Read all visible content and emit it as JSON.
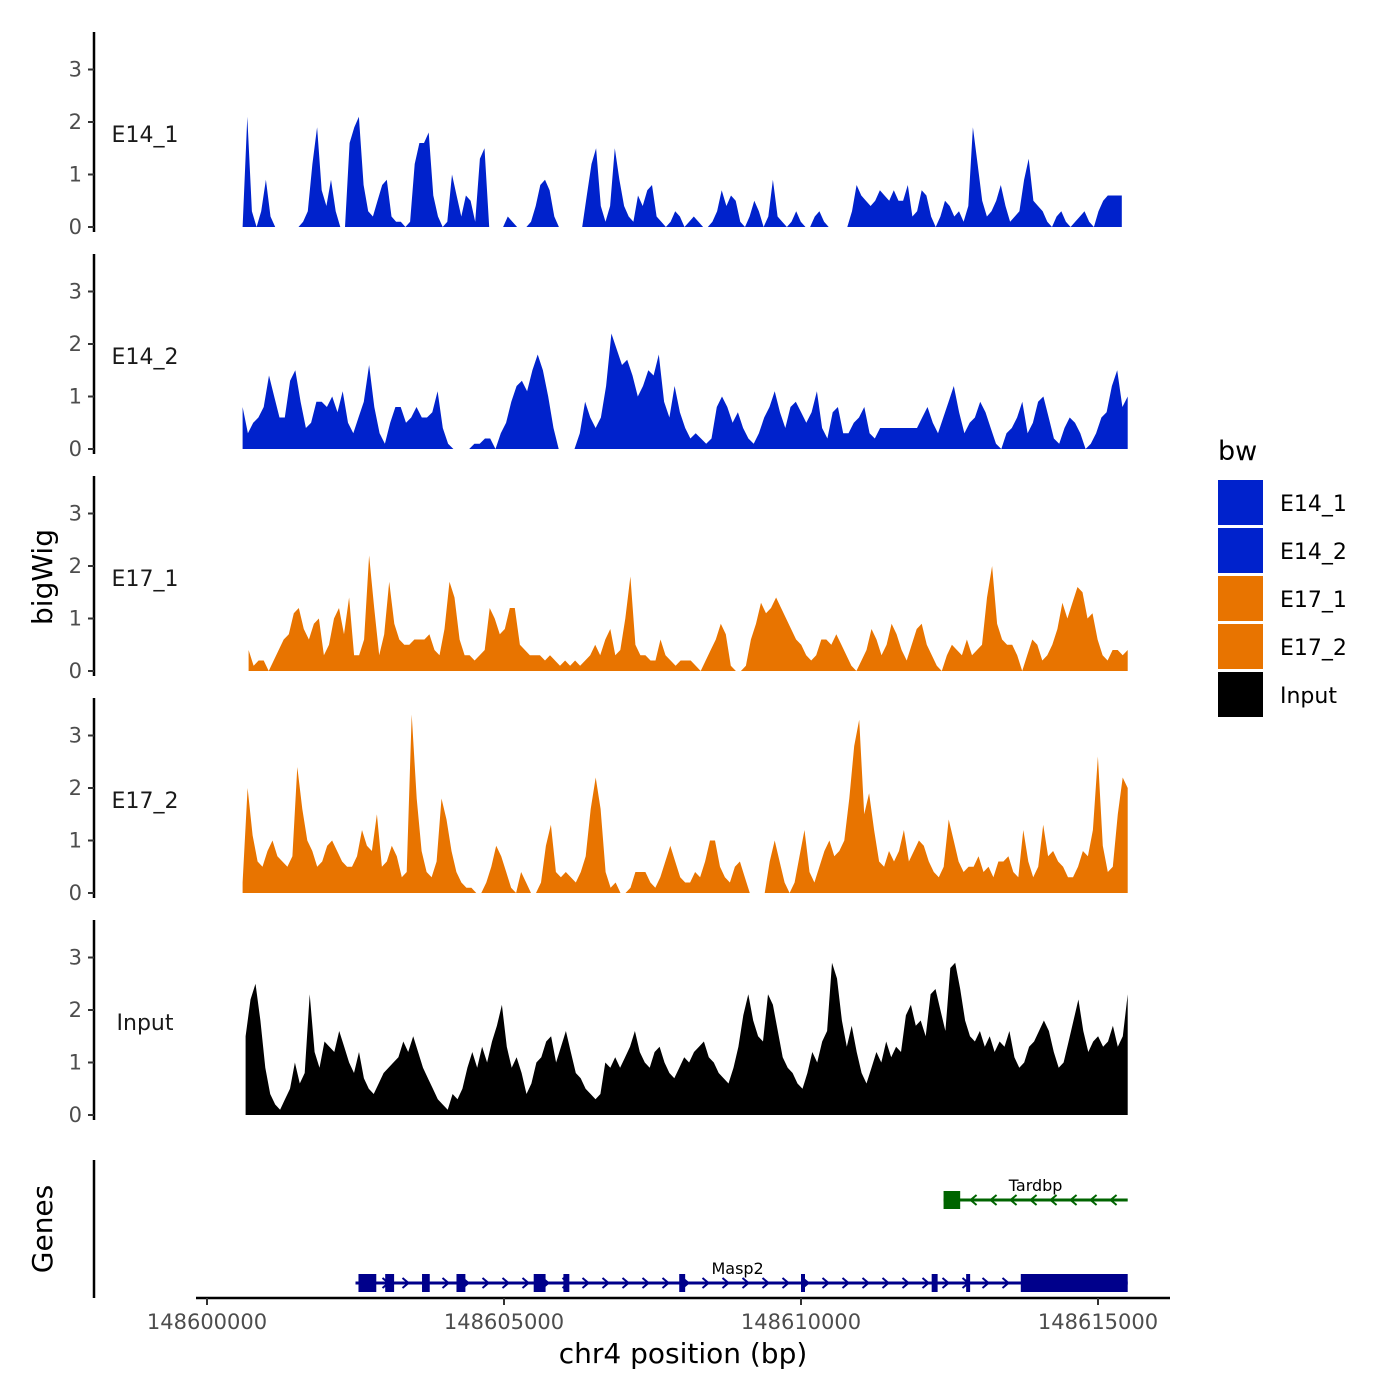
{
  "chart_data": {
    "type": "area",
    "title": "",
    "xlabel": "chr4 position (bp)",
    "ylabel": "bigWig",
    "gene_panel_label": "Genes",
    "xlim": [
      148599500,
      148615500
    ],
    "ylim": [
      0,
      3.5
    ],
    "x_ticks": [
      148600000,
      148605000,
      148610000,
      148615000
    ],
    "x_tick_labels": [
      "148600000",
      "148605000",
      "148610000",
      "148615000"
    ],
    "y_ticks": [
      0,
      1,
      2,
      3
    ],
    "y_tick_labels": [
      "0",
      "1",
      "2",
      "3"
    ],
    "legend": {
      "title": "bw",
      "entries": [
        {
          "label": "E14_1",
          "color": "#0022cc"
        },
        {
          "label": "E14_2",
          "color": "#0022cc"
        },
        {
          "label": "E17_1",
          "color": "#e87400"
        },
        {
          "label": "E17_2",
          "color": "#e87400"
        },
        {
          "label": "Input",
          "color": "#000000"
        }
      ]
    },
    "series": [
      {
        "name": "E14_1",
        "color": "#0022cc",
        "x_start": 148600600,
        "x_end": 148615400,
        "values": [
          0,
          2.1,
          0.3,
          0,
          0.3,
          0.9,
          0.2,
          0,
          0,
          0,
          0,
          0,
          0,
          0.1,
          0.3,
          1.2,
          1.9,
          0.7,
          0.4,
          0.9,
          0.3,
          0,
          0,
          1.6,
          1.9,
          2.1,
          0.8,
          0.3,
          0.2,
          0.5,
          0.8,
          0.9,
          0.2,
          0.1,
          0.1,
          0,
          0.1,
          1.2,
          1.6,
          1.6,
          1.8,
          0.6,
          0.2,
          0,
          0.1,
          1.0,
          0.6,
          0.2,
          0.6,
          0.5,
          0.1,
          1.3,
          1.5,
          0,
          0,
          0,
          0,
          0.2,
          0.1,
          0,
          0,
          0,
          0.1,
          0.4,
          0.8,
          0.9,
          0.7,
          0.2,
          0,
          0,
          0,
          0,
          0,
          0,
          0.6,
          1.2,
          1.5,
          0.4,
          0.1,
          0.4,
          1.5,
          0.9,
          0.4,
          0.2,
          0.1,
          0.6,
          0.4,
          0.7,
          0.8,
          0.2,
          0.1,
          0,
          0.1,
          0.3,
          0.2,
          0,
          0.1,
          0.2,
          0.1,
          0,
          0,
          0.1,
          0.3,
          0.7,
          0.4,
          0.6,
          0.5,
          0.1,
          0,
          0.2,
          0.5,
          0.3,
          0,
          0.2,
          0.9,
          0.2,
          0.1,
          0,
          0.1,
          0.3,
          0.1,
          0,
          0,
          0.2,
          0.3,
          0.1,
          0,
          0,
          0,
          0,
          0,
          0.3,
          0.8,
          0.6,
          0.5,
          0.4,
          0.5,
          0.7,
          0.6,
          0.5,
          0.7,
          0.5,
          0.5,
          0.8,
          0.2,
          0.3,
          0.7,
          0.6,
          0.2,
          0,
          0.2,
          0.5,
          0.4,
          0.2,
          0.3,
          0.1,
          0.4,
          1.9,
          1.2,
          0.5,
          0.2,
          0.3,
          0.5,
          0.8,
          0.4,
          0.1,
          0.2,
          0.3,
          0.9,
          1.3,
          0.5,
          0.4,
          0.3,
          0.1,
          0,
          0.2,
          0.3,
          0.1,
          0,
          0.1,
          0.2,
          0.3,
          0.1,
          0,
          0.3,
          0.5,
          0.6,
          0.6,
          0.6,
          0.6
        ]
      },
      {
        "name": "E14_2",
        "color": "#0022cc",
        "x_start": 148600600,
        "x_end": 148615500,
        "values": [
          0.8,
          0.3,
          0.5,
          0.6,
          0.8,
          1.4,
          1.0,
          0.6,
          0.6,
          1.3,
          1.5,
          0.9,
          0.4,
          0.5,
          0.9,
          0.9,
          0.8,
          1.0,
          0.7,
          1.1,
          0.5,
          0.3,
          0.6,
          0.9,
          1.6,
          0.8,
          0.3,
          0.1,
          0.5,
          0.8,
          0.8,
          0.5,
          0.6,
          0.8,
          0.6,
          0.6,
          0.7,
          1.1,
          0.4,
          0.1,
          0,
          0,
          0,
          0,
          0.1,
          0.1,
          0.2,
          0.2,
          0,
          0.3,
          0.5,
          0.9,
          1.2,
          1.3,
          1.1,
          1.5,
          1.8,
          1.5,
          1.0,
          0.4,
          0,
          0,
          0,
          0,
          0.3,
          0.9,
          0.6,
          0.4,
          0.6,
          1.2,
          2.2,
          1.9,
          1.6,
          1.7,
          1.4,
          1.0,
          1.2,
          1.5,
          1.4,
          1.8,
          0.9,
          0.6,
          1.2,
          0.7,
          0.4,
          0.2,
          0.3,
          0.2,
          0.1,
          0.2,
          0.8,
          1.0,
          0.8,
          0.5,
          0.7,
          0.4,
          0.2,
          0.1,
          0.3,
          0.6,
          0.8,
          1.1,
          0.7,
          0.4,
          0.8,
          0.9,
          0.7,
          0.5,
          0.7,
          1.1,
          0.4,
          0.2,
          0.7,
          0.8,
          0.3,
          0.3,
          0.5,
          0.6,
          0.8,
          0.3,
          0.2,
          0.4,
          0.4,
          0.4,
          0.4,
          0.4,
          0.4,
          0.4,
          0.4,
          0.6,
          0.8,
          0.5,
          0.3,
          0.6,
          0.9,
          1.2,
          0.7,
          0.3,
          0.5,
          0.6,
          0.9,
          0.7,
          0.4,
          0.1,
          0,
          0.3,
          0.4,
          0.6,
          0.9,
          0.3,
          0.5,
          0.9,
          1.0,
          0.6,
          0.2,
          0.1,
          0.4,
          0.6,
          0.5,
          0.3,
          0,
          0.1,
          0.3,
          0.6,
          0.7,
          1.2,
          1.5,
          0.8,
          1.0
        ]
      },
      {
        "name": "E17_1",
        "color": "#e87400",
        "x_start": 148600700,
        "x_end": 148615500,
        "values": [
          0.4,
          0.1,
          0.2,
          0.2,
          0,
          0.2,
          0.4,
          0.6,
          0.7,
          1.1,
          1.2,
          0.8,
          0.6,
          0.9,
          1.0,
          0.3,
          0.5,
          1.0,
          1.2,
          0.7,
          1.4,
          0.3,
          0.3,
          0.6,
          2.2,
          1.2,
          0.3,
          0.7,
          1.7,
          0.9,
          0.6,
          0.5,
          0.5,
          0.6,
          0.6,
          0.6,
          0.7,
          0.4,
          0.3,
          0.8,
          1.7,
          1.4,
          0.6,
          0.3,
          0.3,
          0.2,
          0.3,
          0.4,
          1.2,
          1.0,
          0.7,
          0.8,
          1.2,
          1.2,
          0.5,
          0.4,
          0.3,
          0.3,
          0.3,
          0.2,
          0.3,
          0.2,
          0.1,
          0.2,
          0.1,
          0.2,
          0.1,
          0.2,
          0.3,
          0.5,
          0.3,
          0.6,
          0.8,
          0.3,
          0.4,
          1.0,
          1.8,
          0.5,
          0.3,
          0.3,
          0.2,
          0.2,
          0.6,
          0.3,
          0.2,
          0.1,
          0.2,
          0.2,
          0.2,
          0.1,
          0,
          0.2,
          0.4,
          0.6,
          0.9,
          0.7,
          0.1,
          0,
          0,
          0.1,
          0.6,
          0.9,
          1.3,
          1.1,
          1.2,
          1.4,
          1.2,
          1.0,
          0.8,
          0.6,
          0.5,
          0.3,
          0.2,
          0.3,
          0.6,
          0.6,
          0.5,
          0.7,
          0.5,
          0.3,
          0.1,
          0,
          0.2,
          0.4,
          0.8,
          0.6,
          0.3,
          0.5,
          0.9,
          0.7,
          0.4,
          0.2,
          0.5,
          0.8,
          0.9,
          0.5,
          0.3,
          0.1,
          0,
          0.3,
          0.5,
          0.4,
          0.3,
          0.6,
          0.3,
          0.4,
          0.5,
          1.4,
          2.0,
          0.9,
          0.6,
          0.5,
          0.5,
          0.3,
          0,
          0.3,
          0.6,
          0.5,
          0.2,
          0.3,
          0.5,
          0.8,
          1.3,
          1.0,
          1.3,
          1.6,
          1.5,
          1.0,
          1.1,
          0.6,
          0.3,
          0.2,
          0.4,
          0.4,
          0.3,
          0.4
        ]
      },
      {
        "name": "E17_2",
        "color": "#e87400",
        "x_start": 148600600,
        "x_end": 148615500,
        "values": [
          0.2,
          2.0,
          1.1,
          0.6,
          0.5,
          0.8,
          1.0,
          0.7,
          0.6,
          0.5,
          0.7,
          2.4,
          1.6,
          1.0,
          0.8,
          0.5,
          0.6,
          0.9,
          1.0,
          0.8,
          0.6,
          0.5,
          0.5,
          0.7,
          1.2,
          0.9,
          0.8,
          1.5,
          0.5,
          0.6,
          0.9,
          0.7,
          0.3,
          0.4,
          3.4,
          1.8,
          0.8,
          0.4,
          0.3,
          0.6,
          1.8,
          1.4,
          0.8,
          0.4,
          0.2,
          0.1,
          0.1,
          0,
          0,
          0.2,
          0.5,
          0.9,
          0.7,
          0.4,
          0.1,
          0,
          0.4,
          0.2,
          0,
          0,
          0.2,
          0.9,
          1.3,
          0.4,
          0.3,
          0.4,
          0.3,
          0.2,
          0.4,
          0.7,
          1.6,
          2.2,
          1.6,
          0.4,
          0.1,
          0.2,
          0,
          0,
          0.1,
          0.4,
          0.4,
          0.4,
          0.2,
          0.1,
          0.3,
          0.6,
          0.9,
          0.6,
          0.3,
          0.2,
          0.2,
          0.4,
          0.3,
          0.6,
          1.0,
          1.0,
          0.5,
          0.3,
          0.2,
          0.5,
          0.6,
          0.3,
          0,
          0,
          0,
          0,
          0.6,
          1.0,
          0.6,
          0.2,
          0,
          0.2,
          0.7,
          1.2,
          0.4,
          0.2,
          0.5,
          0.8,
          1.0,
          0.7,
          0.8,
          1.0,
          1.8,
          2.8,
          3.3,
          1.5,
          1.9,
          1.2,
          0.6,
          0.5,
          0.8,
          0.6,
          0.8,
          1.2,
          0.6,
          0.8,
          1.0,
          0.9,
          0.6,
          0.4,
          0.3,
          0.5,
          1.4,
          1.0,
          0.6,
          0.4,
          0.5,
          0.5,
          0.7,
          0.4,
          0.5,
          0.3,
          0.6,
          0.6,
          0.7,
          0.4,
          0.3,
          1.2,
          0.6,
          0.3,
          0.5,
          1.3,
          0.7,
          0.8,
          0.6,
          0.5,
          0.3,
          0.3,
          0.5,
          0.8,
          0.7,
          1.2,
          2.6,
          0.9,
          0.4,
          0.5,
          1.5,
          2.2,
          2.0
        ]
      },
      {
        "name": "Input",
        "color": "#000000",
        "x_start": 148600650,
        "x_end": 148615500,
        "values": [
          1.5,
          2.2,
          2.5,
          1.8,
          0.9,
          0.4,
          0.2,
          0.1,
          0.3,
          0.5,
          1.0,
          0.6,
          0.8,
          2.3,
          1.2,
          0.9,
          1.4,
          1.3,
          1.2,
          1.6,
          1.3,
          1.0,
          0.8,
          1.2,
          0.7,
          0.5,
          0.4,
          0.6,
          0.8,
          0.9,
          1.0,
          1.1,
          1.4,
          1.2,
          1.5,
          1.2,
          0.9,
          0.7,
          0.5,
          0.3,
          0.2,
          0.1,
          0.4,
          0.3,
          0.5,
          0.9,
          1.2,
          0.9,
          1.3,
          1.0,
          1.4,
          1.7,
          2.1,
          1.3,
          0.9,
          1.1,
          0.8,
          0.4,
          0.6,
          1.0,
          1.1,
          1.4,
          1.5,
          1.0,
          1.3,
          1.6,
          1.2,
          0.8,
          0.7,
          0.5,
          0.4,
          0.3,
          0.4,
          1.0,
          0.9,
          1.1,
          0.9,
          1.1,
          1.3,
          1.6,
          1.2,
          1.0,
          0.9,
          1.2,
          1.3,
          1.0,
          0.8,
          0.7,
          0.9,
          1.1,
          1.0,
          1.2,
          1.3,
          1.4,
          1.1,
          1.0,
          0.8,
          0.7,
          0.6,
          0.9,
          1.3,
          1.9,
          2.3,
          1.8,
          1.5,
          1.4,
          2.3,
          2.1,
          1.6,
          1.1,
          0.9,
          0.8,
          0.6,
          0.5,
          0.8,
          1.2,
          1.0,
          1.4,
          1.6,
          2.9,
          2.6,
          1.8,
          1.3,
          1.7,
          1.2,
          0.8,
          0.6,
          0.9,
          1.2,
          1.0,
          1.4,
          1.1,
          1.3,
          1.2,
          1.9,
          2.1,
          1.7,
          1.8,
          1.5,
          2.3,
          2.4,
          2.0,
          1.6,
          2.8,
          2.9,
          2.4,
          1.8,
          1.5,
          1.4,
          1.6,
          1.3,
          1.5,
          1.2,
          1.4,
          1.3,
          1.6,
          1.1,
          0.9,
          1.0,
          1.3,
          1.4,
          1.6,
          1.8,
          1.6,
          1.2,
          0.9,
          1.0,
          1.4,
          1.8,
          2.2,
          1.6,
          1.2,
          1.4,
          1.5,
          1.3,
          1.4,
          1.7,
          1.3,
          1.5,
          2.3
        ]
      }
    ],
    "genes": [
      {
        "name": "Tardbp",
        "strand": "-",
        "color": "#006400",
        "start": 148612400,
        "end": 148615500,
        "exons": [
          [
            148612400,
            148612680
          ]
        ]
      },
      {
        "name": "Masp2",
        "strand": "+",
        "color": "#00008b",
        "start": 148602500,
        "end": 148615500,
        "exons": [
          [
            148602550,
            148602850
          ],
          [
            148603000,
            148603150
          ],
          [
            148603620,
            148603750
          ],
          [
            148604200,
            148604350
          ],
          [
            148605500,
            148605700
          ],
          [
            148606000,
            148606100
          ],
          [
            148607950,
            148608050
          ],
          [
            148610000,
            148610060
          ],
          [
            148612200,
            148612300
          ],
          [
            148612780,
            148612840
          ],
          [
            148613700,
            148615500
          ]
        ]
      }
    ]
  }
}
